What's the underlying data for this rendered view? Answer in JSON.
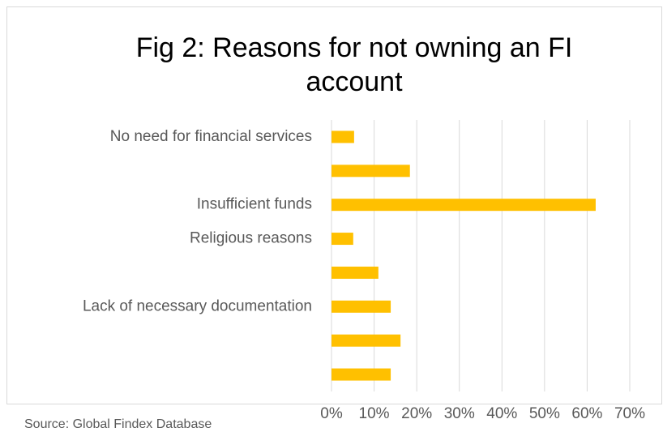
{
  "chart_data": {
    "type": "barh",
    "title": "Fig 2: Reasons for not owning an FI account",
    "categories": [
      "No need for financial services",
      null,
      "Insufficient funds",
      "Religious reasons",
      null,
      "Lack of necessary documentation",
      null,
      null
    ],
    "values": [
      5.3,
      18.4,
      62,
      5.1,
      11,
      13.9,
      16.2,
      13.9
    ],
    "color": "#ffc000",
    "xlim": [
      0,
      70
    ],
    "xticks": [
      {
        "value": 0,
        "label": "0%"
      },
      {
        "value": 10,
        "label": "10%"
      },
      {
        "value": 20,
        "label": "20%"
      },
      {
        "value": 30,
        "label": "30%"
      },
      {
        "value": 40,
        "label": "40%"
      },
      {
        "value": 50,
        "label": "50%"
      },
      {
        "value": 60,
        "label": "60%"
      },
      {
        "value": 70,
        "label": "70%"
      }
    ],
    "grid": true,
    "annotation": "Source: Global Findex Database"
  }
}
